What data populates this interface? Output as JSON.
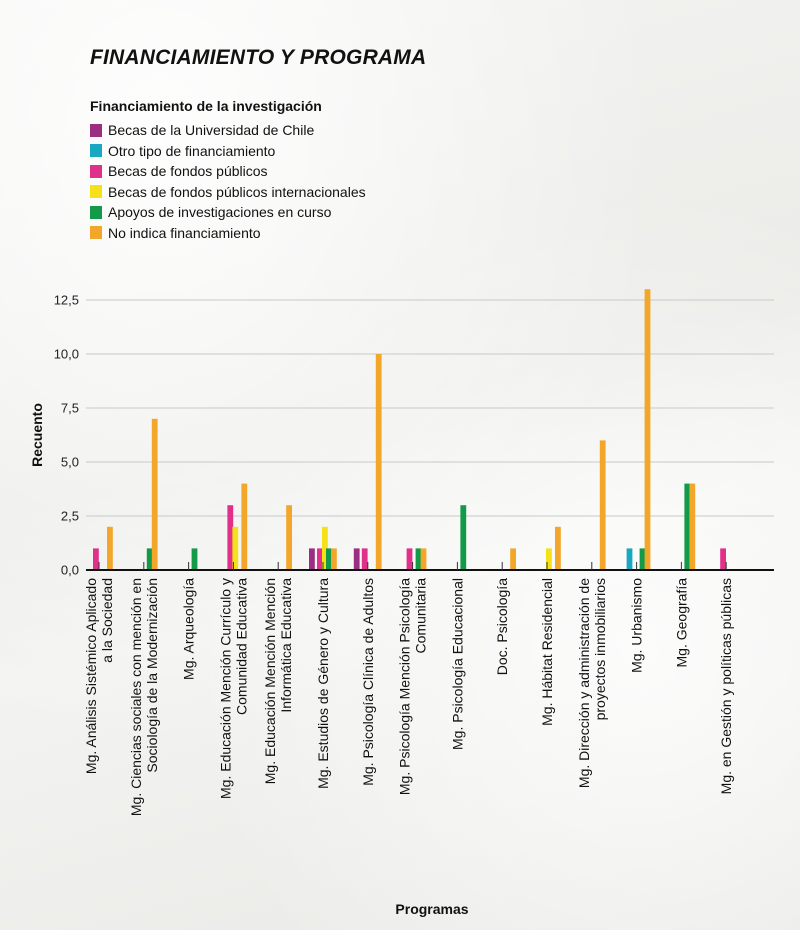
{
  "title": "FINANCIAMIENTO Y PROGRAMA",
  "legend": {
    "title": "Financiamiento de la investigación",
    "items": [
      {
        "label": "Becas de la Universidad de Chile",
        "color": "#9b2d82"
      },
      {
        "label": "Otro tipo de financiamiento",
        "color": "#1aa7c2"
      },
      {
        "label": "Becas de fondos públicos",
        "color": "#e0308a"
      },
      {
        "label": "Becas de fondos públicos internacionales",
        "color": "#f4e11a"
      },
      {
        "label": "Apoyos de investigaciones en curso",
        "color": "#129a48"
      },
      {
        "label": "No indica financiamiento",
        "color": "#f2a72a"
      }
    ]
  },
  "chart_data": {
    "type": "bar",
    "xlabel": "Programas",
    "ylabel": "Recuento",
    "ylim": [
      0,
      13.5
    ],
    "yticks": [
      "0,0",
      "2,5",
      "5,0",
      "7,5",
      "10,0",
      "12,5"
    ],
    "ytick_values": [
      0,
      2.5,
      5,
      7.5,
      10,
      12.5
    ],
    "grid": true,
    "legend_position": "top-left",
    "categories": [
      [
        "Mg. Análisis Sistémico Aplicado",
        "a la Sociedad"
      ],
      [
        "Mg. Ciencias sociales con mención en",
        "Sociología de la Modernización"
      ],
      [
        "Mg. Arqueología"
      ],
      [
        "Mg. Educación Mención Currículo y",
        "Comunidad Educativa"
      ],
      [
        "Mg. Educación Mención Mención",
        "Informática Educativa"
      ],
      [
        "Mg. Estudios de Género y Cultura"
      ],
      [
        "Mg. Psicología Clínica de Adultos"
      ],
      [
        "Mg. Psicología Mención Psicología",
        "Comunitaria"
      ],
      [
        "Mg. Psicología Educacional"
      ],
      [
        "Doc. Psicología"
      ],
      [
        "Mg. Hábitat Residencial"
      ],
      [
        "Mg. Dirección y administración de",
        "proyectos inmobiliarios"
      ],
      [
        "Mg. Urbanismo"
      ],
      [
        "Mg. Geografía"
      ],
      [
        "Mg. en Gestión y políticas públicas"
      ]
    ],
    "series": [
      {
        "name": "Becas de la Universidad de Chile",
        "values": [
          0,
          0,
          0,
          0,
          0,
          1,
          1,
          0,
          0,
          0,
          0,
          0,
          0,
          0,
          0
        ]
      },
      {
        "name": "Otro tipo de financiamiento",
        "values": [
          0,
          0,
          0,
          0,
          0,
          0,
          0,
          0,
          0,
          0,
          0,
          0,
          1,
          0,
          0
        ]
      },
      {
        "name": "Becas de fondos públicos",
        "values": [
          1,
          0,
          0,
          3,
          0,
          1,
          1,
          1,
          0,
          0,
          0,
          0,
          0,
          0,
          1
        ]
      },
      {
        "name": "Becas de fondos públicos internacionales",
        "values": [
          0,
          0,
          0,
          2,
          0,
          2,
          0,
          0,
          0,
          0,
          1,
          0,
          0,
          0,
          0
        ]
      },
      {
        "name": "Apoyos de investigaciones en curso",
        "values": [
          0,
          1,
          1,
          0,
          0,
          1,
          0,
          1,
          3,
          0,
          0,
          0,
          1,
          4,
          0
        ]
      },
      {
        "name": "No indica financiamiento",
        "values": [
          2,
          7,
          0,
          4,
          3,
          1,
          10,
          1,
          0,
          1,
          2,
          6,
          13,
          4,
          0
        ]
      }
    ]
  }
}
